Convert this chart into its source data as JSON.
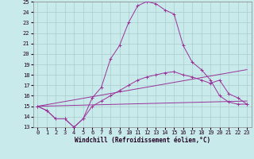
{
  "xlabel": "Windchill (Refroidissement éolien,°C)",
  "background_color": "#c8eaea",
  "grid_color": "#aacccc",
  "line_color": "#993399",
  "xlim": [
    -0.5,
    23.5
  ],
  "ylim": [
    13,
    25
  ],
  "yticks": [
    13,
    14,
    15,
    16,
    17,
    18,
    19,
    20,
    21,
    22,
    23,
    24,
    25
  ],
  "xticks": [
    0,
    1,
    2,
    3,
    4,
    5,
    6,
    7,
    8,
    9,
    10,
    11,
    12,
    13,
    14,
    15,
    16,
    17,
    18,
    19,
    20,
    21,
    22,
    23
  ],
  "series": [
    {
      "x": [
        0,
        1,
        2,
        3,
        4,
        5,
        6,
        7,
        8,
        9,
        10,
        11,
        12,
        13,
        14,
        15,
        16,
        17,
        18,
        19,
        20,
        21,
        22,
        23
      ],
      "y": [
        15.0,
        14.6,
        13.8,
        13.8,
        13.0,
        13.8,
        15.8,
        16.8,
        19.5,
        20.8,
        23.0,
        24.6,
        25.0,
        24.8,
        24.2,
        23.8,
        20.8,
        19.2,
        18.5,
        17.5,
        16.0,
        15.4,
        15.2,
        15.2
      ],
      "marker": true
    },
    {
      "x": [
        0,
        1,
        2,
        3,
        4,
        5,
        6,
        7,
        8,
        9,
        10,
        11,
        12,
        13,
        14,
        15,
        16,
        17,
        18,
        19,
        20,
        21,
        22,
        23
      ],
      "y": [
        15.0,
        14.6,
        13.8,
        13.8,
        13.0,
        13.8,
        15.0,
        15.5,
        16.0,
        16.5,
        17.0,
        17.5,
        17.8,
        18.0,
        18.2,
        18.3,
        18.0,
        17.8,
        17.5,
        17.2,
        17.5,
        16.2,
        15.8,
        15.2
      ],
      "marker": true
    },
    {
      "x": [
        0,
        23
      ],
      "y": [
        15.0,
        18.5
      ],
      "marker": false
    },
    {
      "x": [
        0,
        23
      ],
      "y": [
        15.0,
        15.5
      ],
      "marker": false
    }
  ]
}
